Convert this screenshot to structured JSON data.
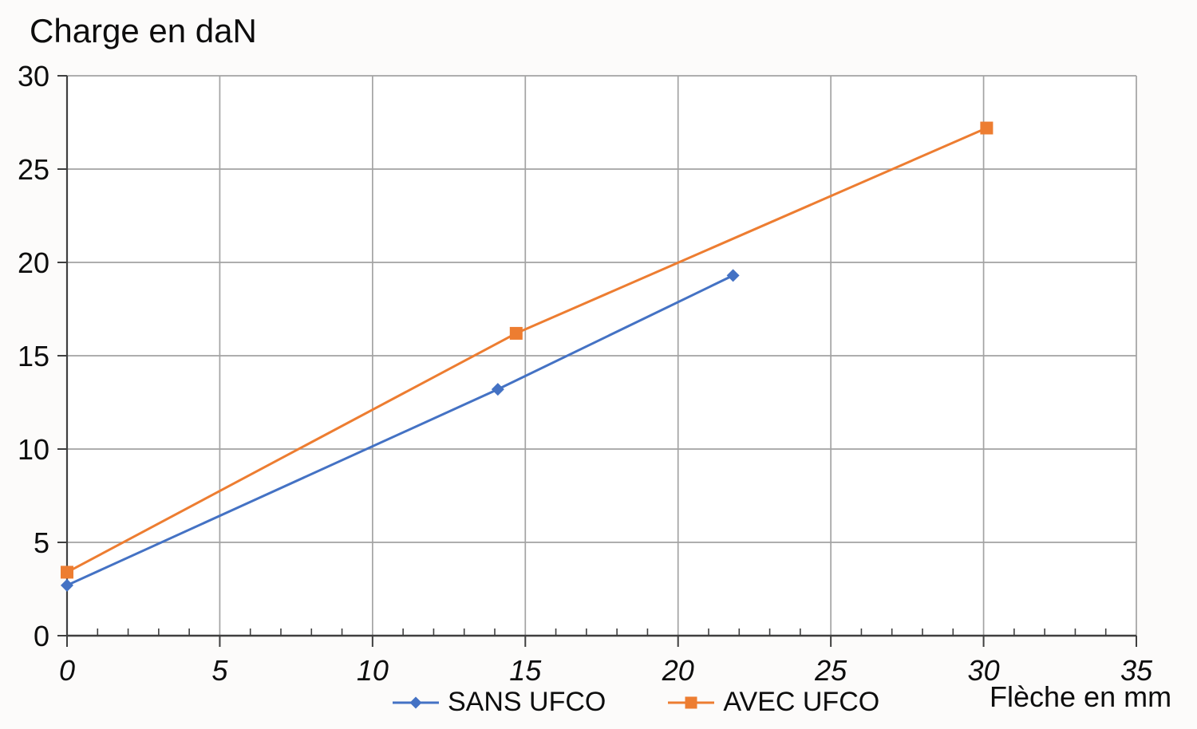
{
  "chart_data": {
    "type": "line",
    "title": "Charge en daN",
    "xlabel": "Flèche en mm",
    "ylabel": "Charge en daN",
    "xlim": [
      0,
      35
    ],
    "ylim": [
      0,
      30
    ],
    "x_ticks": [
      0,
      5,
      10,
      15,
      20,
      25,
      30,
      35
    ],
    "x_minor_step": 1,
    "y_ticks": [
      0,
      5,
      10,
      15,
      20,
      25,
      30
    ],
    "grid": true,
    "legend_position": "bottom-center",
    "series": [
      {
        "name": "SANS UFCO",
        "color": "#4472C4",
        "marker": "diamond",
        "points": [
          [
            0,
            2.7
          ],
          [
            14.1,
            13.2
          ],
          [
            21.8,
            19.3
          ]
        ]
      },
      {
        "name": "AVEC UFCO",
        "color": "#ED7D31",
        "marker": "square",
        "points": [
          [
            0,
            3.4
          ],
          [
            14.7,
            16.2
          ],
          [
            30.1,
            27.2
          ]
        ]
      }
    ],
    "colors": {
      "gridline": "#A3A3A3",
      "axis": "#3F3F3F",
      "text": "#0D0D0D",
      "plot_background": "#FFFFFF",
      "page_background": "#FCFBFA"
    }
  }
}
